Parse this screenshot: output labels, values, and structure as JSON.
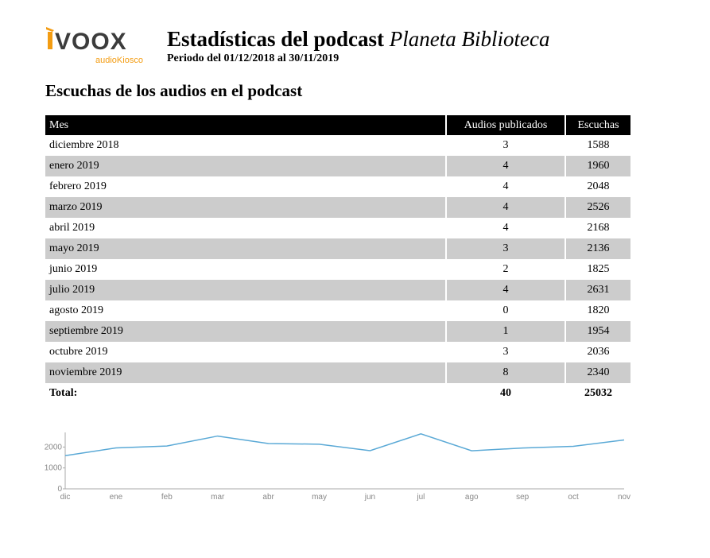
{
  "header": {
    "logo_text": "iVOOX",
    "logo_sub_audio": "audio",
    "logo_sub_kiosco": "Kiosco",
    "title_prefix": "Estadísticas del podcast",
    "podcast_name": "Planeta Biblioteca",
    "period": "Periodo del 01/12/2018 al 30/11/2019"
  },
  "section": {
    "heading": "Escuchas de los audios en el podcast"
  },
  "table": {
    "columns": [
      "Mes",
      "Audios publicados",
      "Escuchas"
    ],
    "rows": [
      [
        "diciembre 2018",
        "3",
        "1588"
      ],
      [
        "enero 2019",
        "4",
        "1960"
      ],
      [
        "febrero 2019",
        "4",
        "2048"
      ],
      [
        "marzo 2019",
        "4",
        "2526"
      ],
      [
        "abril 2019",
        "4",
        "2168"
      ],
      [
        "mayo 2019",
        "3",
        "2136"
      ],
      [
        "junio 2019",
        "2",
        "1825"
      ],
      [
        "julio 2019",
        "4",
        "2631"
      ],
      [
        "agosto 2019",
        "0",
        "1820"
      ],
      [
        "septiembre 2019",
        "1",
        "1954"
      ],
      [
        "octubre 2019",
        "3",
        "2036"
      ],
      [
        "noviembre 2019",
        "8",
        "2340"
      ]
    ],
    "total": {
      "label": "Total:",
      "audios": "40",
      "escuchas": "25032"
    }
  },
  "colors": {
    "logo_orange": "#f39c12",
    "logo_dark": "#3c3c3c",
    "line": "#5aa9d6",
    "header_bg": "#000000",
    "stripe": "#cccccc"
  },
  "chart_data": {
    "type": "line",
    "categories": [
      "dic",
      "ene",
      "feb",
      "mar",
      "abr",
      "may",
      "jun",
      "jul",
      "ago",
      "sep",
      "oct",
      "nov"
    ],
    "values": [
      1588,
      1960,
      2048,
      2526,
      2168,
      2136,
      1825,
      2631,
      1820,
      1954,
      2036,
      2340
    ],
    "yticks": [
      "0",
      "1000",
      "2000"
    ],
    "ylim": [
      0,
      2700
    ],
    "title": "",
    "xlabel": "",
    "ylabel": "",
    "grid": false
  }
}
